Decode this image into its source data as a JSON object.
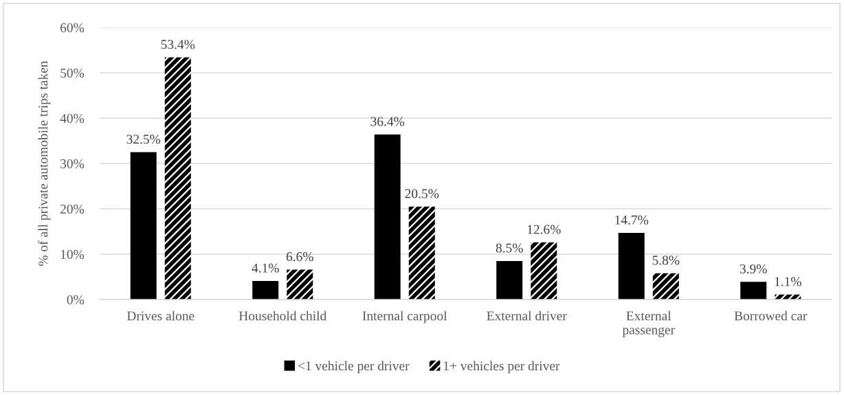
{
  "chart_data": {
    "type": "bar",
    "ylabel": "% of all private automobile trips taken",
    "categories": [
      "Drives alone",
      "Household child",
      "Internal carpool",
      "External driver",
      "External\npassenger",
      "Borrowed car"
    ],
    "series": [
      {
        "name": "<1 vehicle per driver",
        "color": "#000000",
        "values": [
          32.5,
          4.1,
          36.4,
          8.5,
          14.7,
          3.9
        ],
        "value_labels": [
          "32.5%",
          "4.1%",
          "36.4%",
          "8.5%",
          "14.7%",
          "3.9%"
        ]
      },
      {
        "name": "1+ vehicles per driver",
        "color": "#000000",
        "values": [
          53.4,
          6.6,
          20.5,
          12.6,
          5.8,
          1.1
        ],
        "value_labels": [
          "53.4%",
          "6.6%",
          "20.5%",
          "12.6%",
          "5.8%",
          "1.1%"
        ]
      }
    ],
    "ylim": [
      0,
      60
    ],
    "yticks": [
      {
        "value": 0,
        "label": "0%"
      },
      {
        "value": 10,
        "label": "10%"
      },
      {
        "value": 20,
        "label": "20%"
      },
      {
        "value": 30,
        "label": "30%"
      },
      {
        "value": 40,
        "label": "40%"
      },
      {
        "value": 50,
        "label": "50%"
      },
      {
        "value": 60,
        "label": "60%"
      }
    ],
    "grid": "y",
    "legend": "bottom"
  }
}
